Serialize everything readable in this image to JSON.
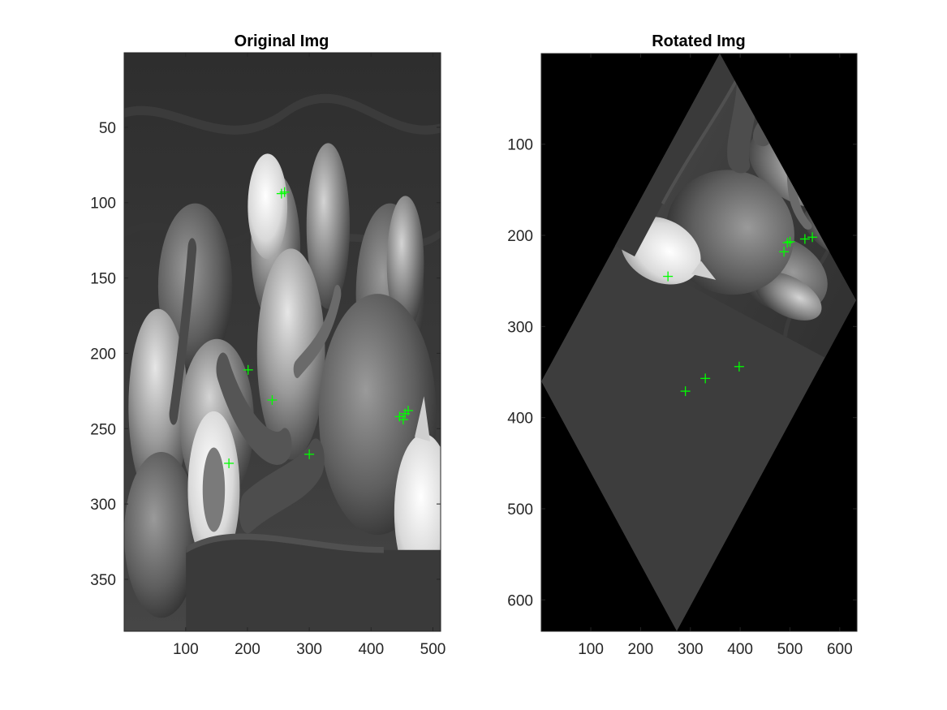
{
  "chart_data": [
    {
      "type": "image",
      "title": "Original Img",
      "xlim": [
        0.5,
        512.5
      ],
      "ylim": [
        0.5,
        384.5
      ],
      "y_reversed": true,
      "xticks": [
        100,
        200,
        300,
        400,
        500
      ],
      "yticks": [
        50,
        100,
        150,
        200,
        250,
        300,
        350
      ],
      "image": "grayscale photo of peppers and garlic",
      "marker": {
        "shape": "plus",
        "color": "#00ff00"
      },
      "points": [
        [
          255,
          94
        ],
        [
          260,
          93
        ],
        [
          201,
          211
        ],
        [
          240,
          231
        ],
        [
          300,
          267
        ],
        [
          170,
          273
        ],
        [
          446,
          242
        ],
        [
          455,
          240
        ],
        [
          460,
          238
        ],
        [
          452,
          244
        ]
      ]
    },
    {
      "type": "image",
      "title": "Rotated Img",
      "xlim": [
        0.5,
        634.5
      ],
      "ylim": [
        0.5,
        634.5
      ],
      "y_reversed": true,
      "xticks": [
        100,
        200,
        300,
        400,
        500,
        600
      ],
      "yticks": [
        100,
        200,
        300,
        400,
        500,
        600
      ],
      "image": "grayscale photo of peppers and garlic rotated within a diamond-shaped region on black background",
      "marker": {
        "shape": "plus",
        "color": "#00ff00"
      },
      "points": [
        [
          255,
          245
        ],
        [
          290,
          371
        ],
        [
          330,
          357
        ],
        [
          398,
          344
        ],
        [
          488,
          218
        ],
        [
          495,
          208
        ],
        [
          500,
          207
        ],
        [
          530,
          204
        ],
        [
          545,
          202
        ]
      ]
    }
  ]
}
